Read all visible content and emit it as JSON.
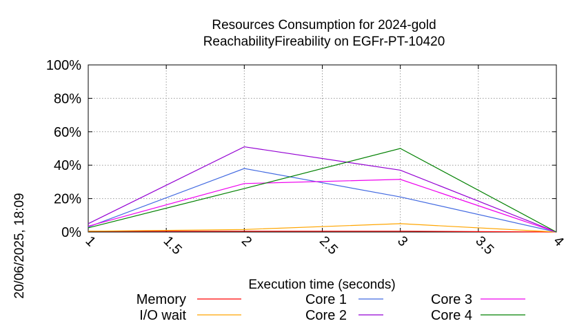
{
  "chart_data": {
    "type": "line",
    "title": [
      "Resources Consumption for 2024-gold",
      "ReachabilityFireability on EGFr-PT-10420"
    ],
    "xlabel": "Execution time (seconds)",
    "ylabel": "",
    "side_label": "20/06/2025, 18:09",
    "xlim": [
      1,
      4
    ],
    "ylim": [
      0,
      100
    ],
    "x_ticks": [
      1,
      1.5,
      2,
      2.5,
      3,
      3.5,
      4
    ],
    "x_tick_labels": [
      "1",
      "1.5",
      "2",
      "2.5",
      "3",
      "3.5",
      "4"
    ],
    "y_ticks": [
      0,
      20,
      40,
      60,
      80,
      100
    ],
    "y_tick_labels": [
      "0%",
      "20%",
      "40%",
      "60%",
      "80%",
      "100%"
    ],
    "grid": true,
    "legend_position": "bottom",
    "x": [
      1,
      2,
      3,
      4
    ],
    "series": [
      {
        "name": "Memory",
        "color": "#ff0000",
        "values": [
          0.5,
          0.5,
          0.5,
          0
        ]
      },
      {
        "name": "I/O wait",
        "color": "#ffa500",
        "values": [
          0.5,
          1.5,
          5,
          0
        ]
      },
      {
        "name": "Core 1",
        "color": "#4169e1",
        "values": [
          3,
          38,
          21,
          0
        ]
      },
      {
        "name": "Core 2",
        "color": "#9400d3",
        "values": [
          5,
          51,
          37,
          0
        ]
      },
      {
        "name": "Core 3",
        "color": "#ee00ee",
        "values": [
          3.5,
          29,
          31.5,
          0
        ]
      },
      {
        "name": "Core 4",
        "color": "#008000",
        "values": [
          2.5,
          26,
          50,
          0
        ]
      }
    ]
  }
}
